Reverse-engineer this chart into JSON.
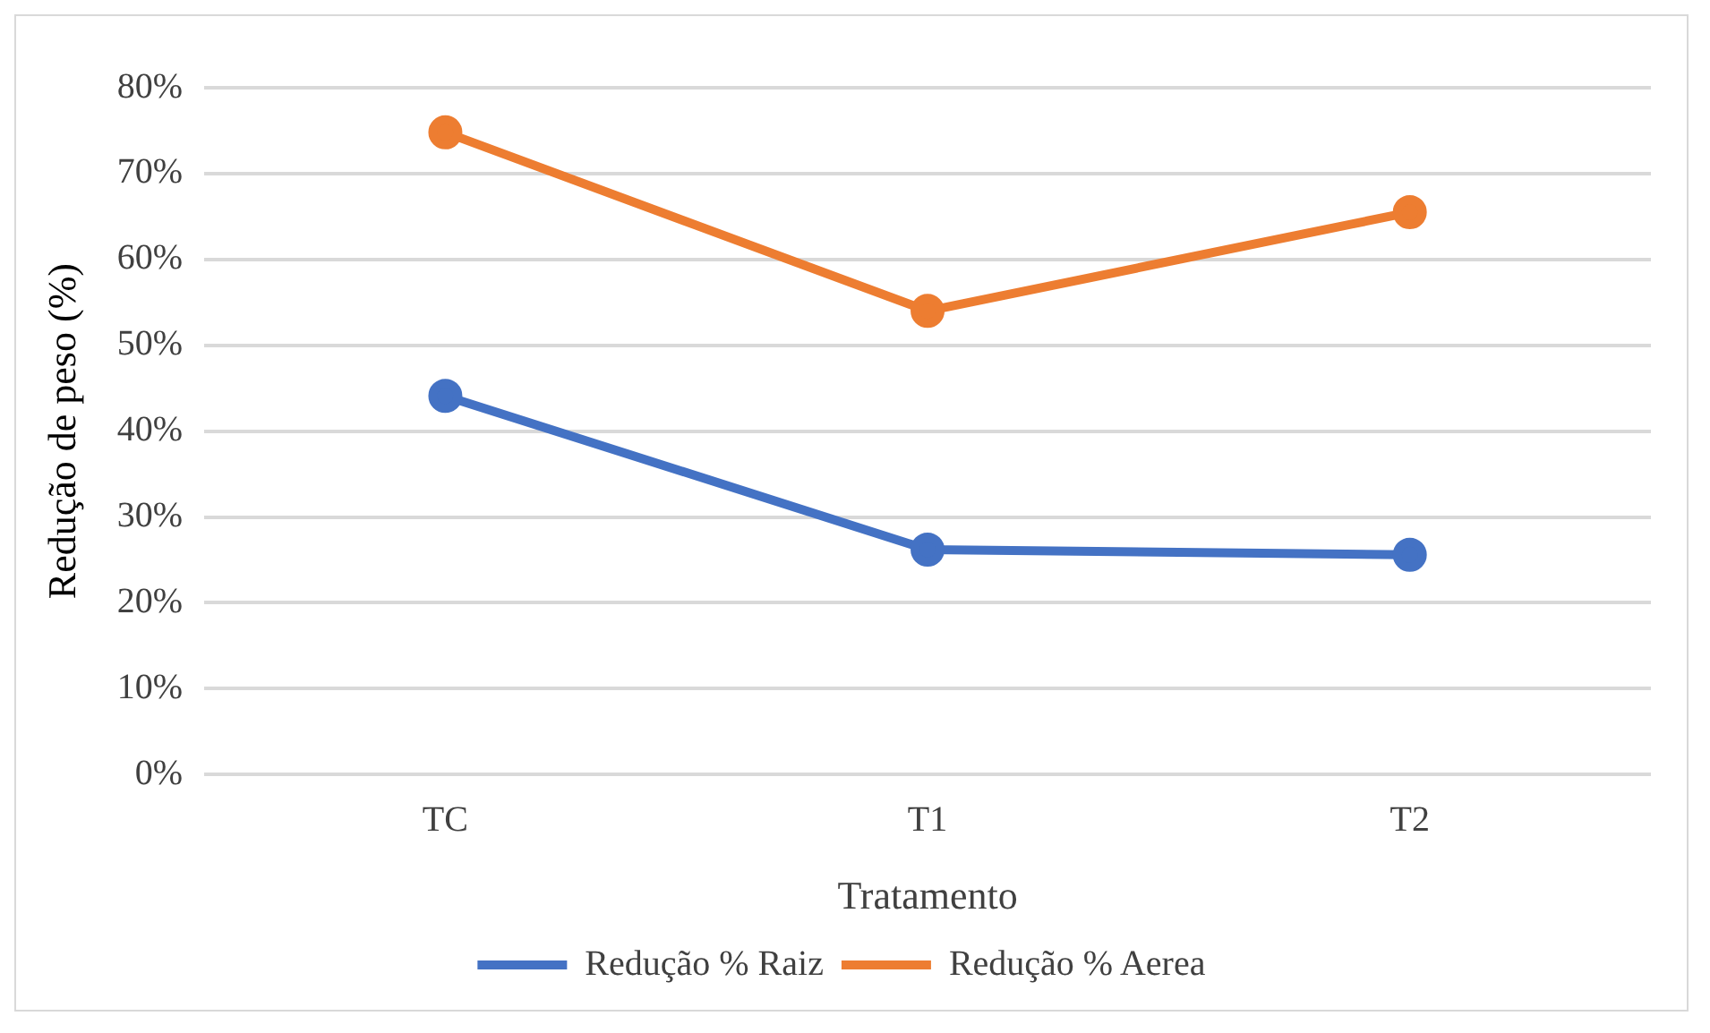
{
  "chart_data": {
    "type": "line",
    "xlabel": "Tratamento",
    "ylabel": "Redução de peso (%)",
    "categories": [
      "TC",
      "T1",
      "T2"
    ],
    "series": [
      {
        "name": "Redução % Raiz",
        "color": "#4472c4",
        "values": [
          44.1,
          26.2,
          25.6
        ]
      },
      {
        "name": "Redução % Aerea",
        "color": "#ed7d31",
        "values": [
          74.8,
          54.0,
          65.5
        ]
      }
    ],
    "ylim": [
      0,
      80
    ],
    "yticks": [
      {
        "value": 0,
        "label": "0%"
      },
      {
        "value": 10,
        "label": "10%"
      },
      {
        "value": 20,
        "label": "20%"
      },
      {
        "value": 30,
        "label": "30%"
      },
      {
        "value": 40,
        "label": "40%"
      },
      {
        "value": 50,
        "label": "50%"
      },
      {
        "value": 60,
        "label": "60%"
      },
      {
        "value": 70,
        "label": "70%"
      },
      {
        "value": 80,
        "label": "80%"
      }
    ],
    "grid": "y",
    "legend": "bottom",
    "marker": "circle",
    "line_style": "solid"
  }
}
